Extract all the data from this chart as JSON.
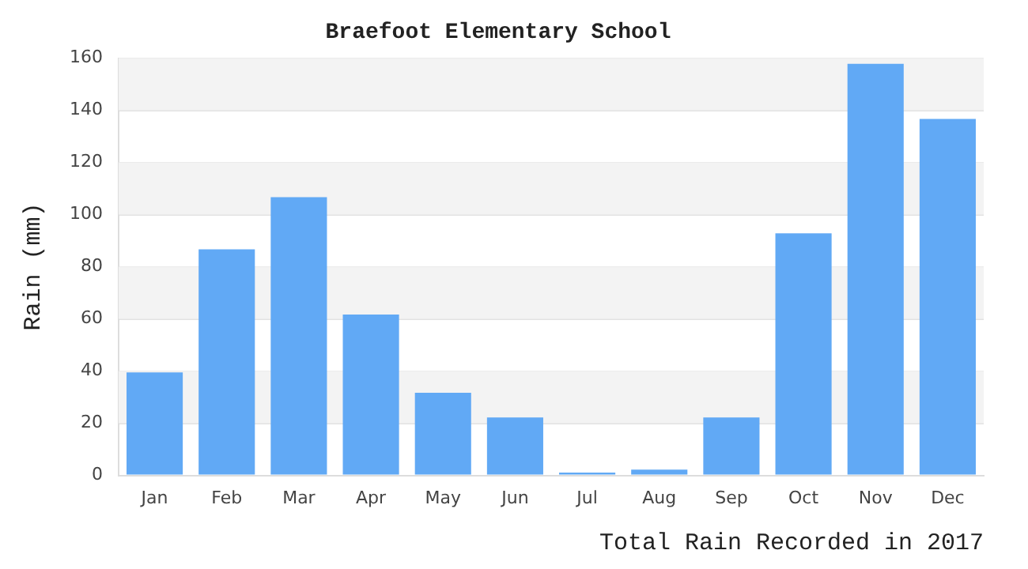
{
  "chart_data": {
    "type": "bar",
    "title": "Braefoot Elementary School",
    "xlabel": "Total Rain Recorded in 2017",
    "ylabel": "Rain (mm)",
    "categories": [
      "Jan",
      "Feb",
      "Mar",
      "Apr",
      "May",
      "Jun",
      "Jul",
      "Aug",
      "Sep",
      "Oct",
      "Nov",
      "Dec"
    ],
    "values": [
      39.5,
      86.7,
      106.7,
      61.7,
      31.7,
      22.2,
      1.1,
      2.2,
      22.2,
      92.8,
      157.8,
      136.7
    ],
    "color": "#61a9f5",
    "ylim": [
      0,
      160
    ],
    "yticks": [
      0,
      20,
      40,
      60,
      80,
      100,
      120,
      140,
      160
    ],
    "grid": "y",
    "legend": false
  }
}
